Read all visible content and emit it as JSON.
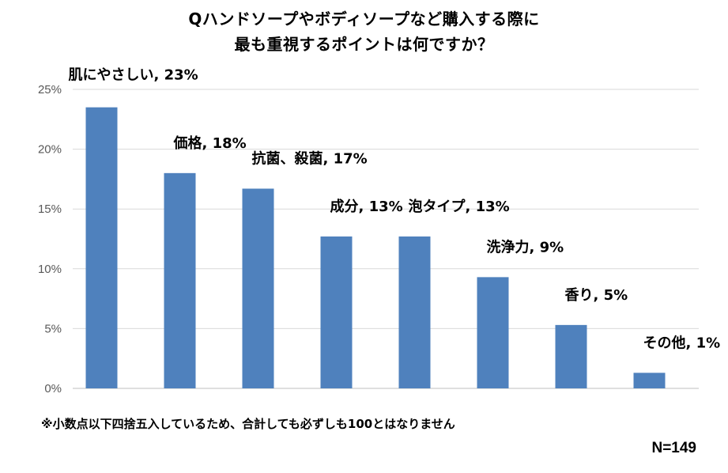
{
  "chart_data": {
    "type": "bar",
    "title_lines": [
      "Qハンドソープやボディソープなど購入する際に",
      "最も重視するポイントは何ですか？"
    ],
    "categories": [
      "肌にやさしい",
      "価格",
      "抗菌、殺菌",
      "成分",
      "泡タイプ",
      "洗浄力",
      "香り",
      "その他"
    ],
    "values": [
      23.5,
      18.0,
      16.7,
      12.7,
      12.7,
      9.3,
      5.3,
      1.3
    ],
    "data_labels": [
      "肌にやさしい, 23%",
      "価格, 18%",
      "抗菌、殺菌, 17%",
      "成分, 13%",
      "泡タイプ, 13%",
      "洗浄力, 9%",
      "香り, 5%",
      "その他, 1%"
    ],
    "yticks": [
      "0%",
      "5%",
      "10%",
      "15%",
      "20%",
      "25%"
    ],
    "ylim": [
      0,
      25
    ],
    "grid": true,
    "bar_color": "#4f81bd",
    "grid_color": "#d9d9d9",
    "footnote": "※小数点以下四捨五入しているため、合計しても必ずしも100とはなりません",
    "sample_size": "N=149"
  }
}
